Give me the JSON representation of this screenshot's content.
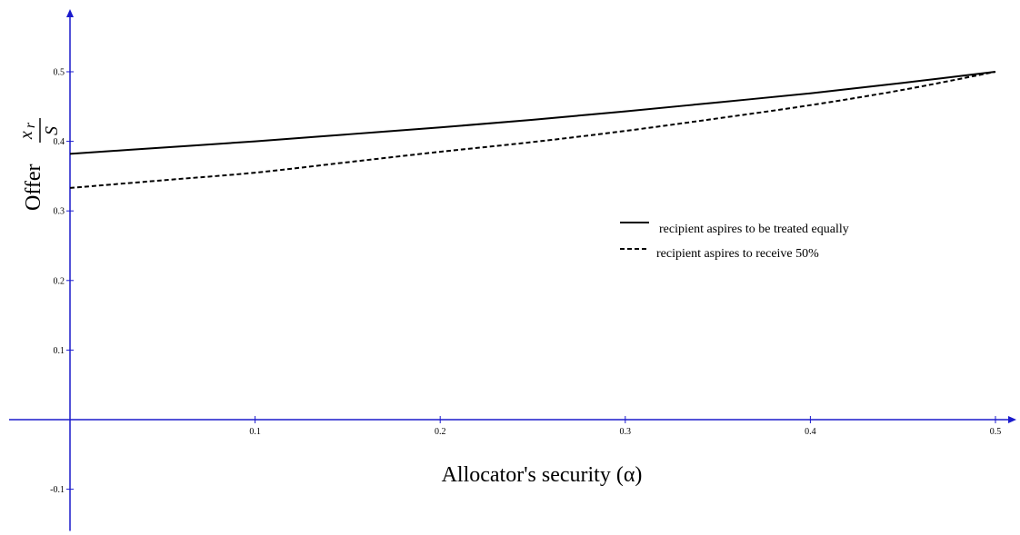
{
  "chart_data": {
    "type": "line",
    "xlabel": "Allocator's security (α)",
    "ylabel": {
      "word": "Offer",
      "numerator_var": "x",
      "numerator_sub": "r",
      "denominator": "S"
    },
    "xlim": [
      0,
      0.5
    ],
    "ylim": [
      -0.16,
      0.59
    ],
    "x_ticks": [
      0.1,
      0.2,
      0.3,
      0.4,
      0.5
    ],
    "x_tick_labels": [
      "0.1",
      "0.2",
      "0.3",
      "0.4",
      "0.5"
    ],
    "y_ticks": [
      -0.1,
      0.1,
      0.2,
      0.3,
      0.4,
      0.5
    ],
    "y_tick_labels": [
      "-0.1",
      "0.1",
      "0.2",
      "0.3",
      "0.4",
      "0.5"
    ],
    "grid": false,
    "legend_position": "center-right",
    "axis_color": "#1a1acc",
    "series": [
      {
        "name": "recipient aspires to be treated equally",
        "style": "solid",
        "color": "#000000",
        "x": [
          0,
          0.05,
          0.1,
          0.15,
          0.2,
          0.25,
          0.3,
          0.35,
          0.4,
          0.45,
          0.5
        ],
        "values": [
          0.382,
          0.391,
          0.4,
          0.41,
          0.42,
          0.431,
          0.443,
          0.456,
          0.469,
          0.484,
          0.5
        ]
      },
      {
        "name": "recipient aspires to receive 50%",
        "style": "dashed",
        "color": "#000000",
        "x": [
          0,
          0.05,
          0.1,
          0.15,
          0.2,
          0.25,
          0.3,
          0.35,
          0.4,
          0.45,
          0.5
        ],
        "values": [
          0.333,
          0.344,
          0.355,
          0.37,
          0.385,
          0.399,
          0.415,
          0.433,
          0.452,
          0.474,
          0.5
        ]
      }
    ]
  }
}
